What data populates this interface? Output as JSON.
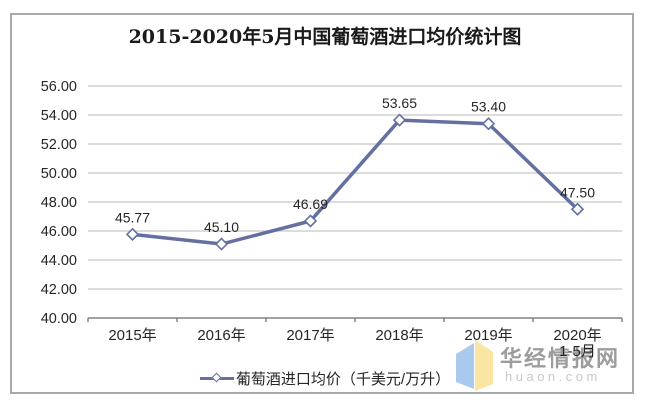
{
  "title": "2015-2020年5月中国葡萄酒进口均价统计图",
  "legend": {
    "label": "葡萄酒进口均价（千美元/万升）"
  },
  "watermark": {
    "site_name": "华经情报网",
    "site_domain": "huaon.com",
    "logo_blue": "#a9c9ee",
    "logo_yellow": "#fae5a3"
  },
  "chart_data": {
    "type": "line",
    "title": "2015-2020年5月中国葡萄酒进口均价统计图",
    "series": [
      {
        "name": "葡萄酒进口均价（千美元/万升）",
        "values": [
          45.77,
          45.1,
          46.69,
          53.65,
          53.4,
          47.5
        ]
      }
    ],
    "categories": [
      "2015年",
      "2016年",
      "2017年",
      "2018年",
      "2019年",
      "2020年1-5月"
    ],
    "category_label_lines": [
      [
        "2015年"
      ],
      [
        "2016年"
      ],
      [
        "2017年"
      ],
      [
        "2018年"
      ],
      [
        "2019年"
      ],
      [
        "2020年",
        "1-5月"
      ]
    ],
    "data_labels": [
      "45.77",
      "45.10",
      "46.69",
      "53.65",
      "53.40",
      "47.50"
    ],
    "xlabel": "",
    "ylabel": "",
    "ylim": [
      40,
      56
    ],
    "ytick_step": 2,
    "ytick_labels": [
      "40.00",
      "42.00",
      "44.00",
      "46.00",
      "48.00",
      "50.00",
      "52.00",
      "54.00",
      "56.00"
    ],
    "grid": true,
    "legend_position": "bottom",
    "marker": "diamond-white",
    "colors": {
      "line": "#6470A0",
      "marker_fill": "#ffffff",
      "gridline": "#c6c6c6",
      "axis": "#6b6b6b",
      "text": "#262626"
    }
  }
}
